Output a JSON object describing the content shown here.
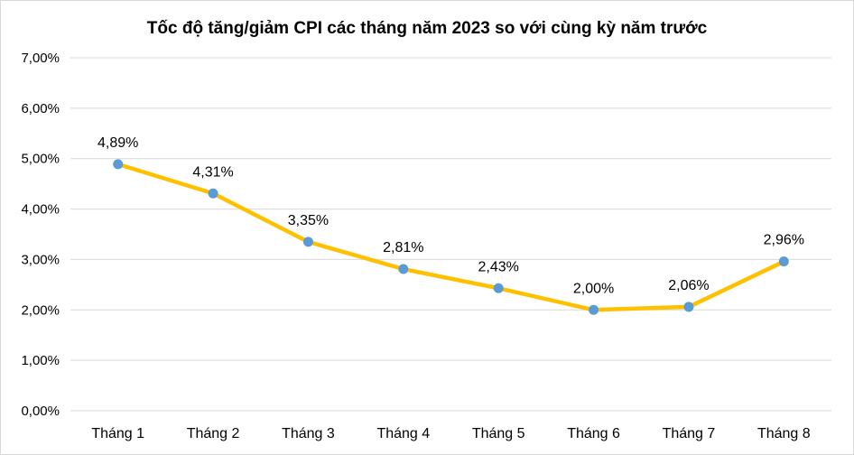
{
  "chart_data": {
    "type": "line",
    "title": "Tốc độ tăng/giảm CPI các tháng năm 2023 so với cùng kỳ năm trước",
    "categories": [
      "Tháng 1",
      "Tháng 2",
      "Tháng 3",
      "Tháng 4",
      "Tháng 5",
      "Tháng 6",
      "Tháng 7",
      "Tháng 8"
    ],
    "series": [
      {
        "values": [
          4.89,
          4.31,
          3.35,
          2.81,
          2.43,
          2.0,
          2.06,
          2.96
        ],
        "data_labels": [
          "4,89%",
          "4,31%",
          "3,35%",
          "2,81%",
          "2,43%",
          "2,00%",
          "2,06%",
          "2,96%"
        ],
        "line_color": "#FFC000",
        "marker_color": "#5B9BD5"
      }
    ],
    "ylim": [
      0,
      7
    ],
    "y_ticks": [
      0,
      1,
      2,
      3,
      4,
      5,
      6,
      7
    ],
    "y_tick_labels": [
      "0,00%",
      "1,00%",
      "2,00%",
      "3,00%",
      "4,00%",
      "5,00%",
      "6,00%",
      "7,00%"
    ],
    "xlabel": "",
    "ylabel": "",
    "grid": true,
    "grid_color": "#D9D9D9",
    "legend": "none"
  }
}
